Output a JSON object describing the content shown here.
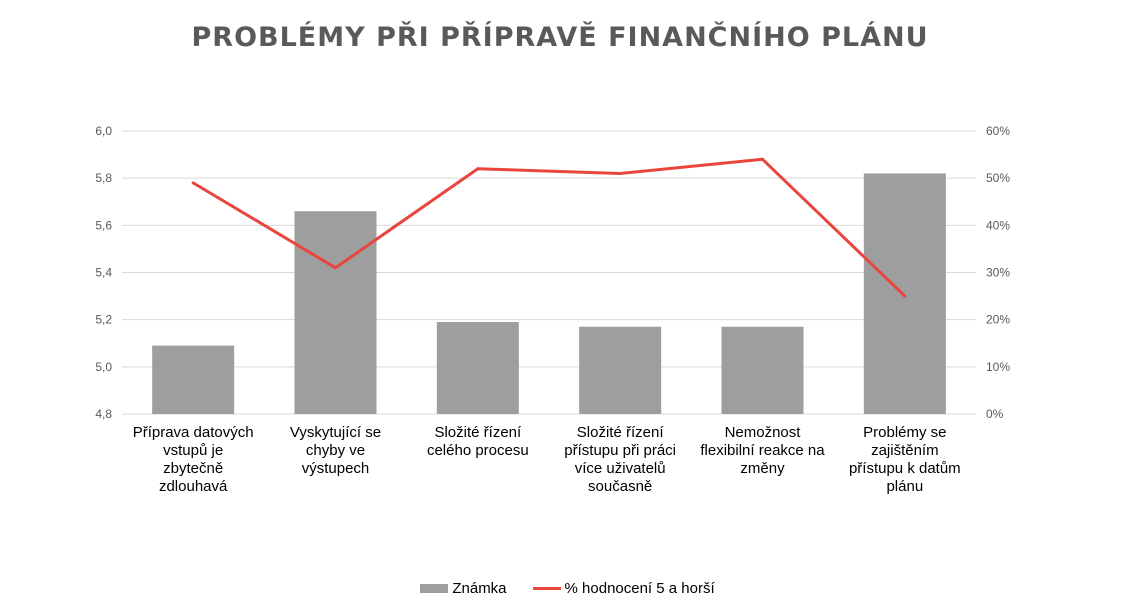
{
  "chart_data": {
    "type": "bar",
    "title": "PROBLÉMY PŘI PŘÍPRAVĚ FINANČNÍHO PLÁNU",
    "categories": [
      [
        "Příprava datových",
        "vstupů je",
        "zbytečně",
        "zdlouhavá"
      ],
      [
        "Vyskytující se",
        "chyby ve",
        "výstupech"
      ],
      [
        "Složité řízení",
        "celého procesu"
      ],
      [
        "Složité řízení",
        "přístupu při práci",
        "více uživatelů",
        "současně"
      ],
      [
        "Nemožnost",
        "flexibilní reakce na",
        "změny"
      ],
      [
        "Problémy se",
        "zajištěním",
        "přístupu k datům",
        "plánu"
      ]
    ],
    "series": [
      {
        "name": "Známka",
        "type": "bar",
        "axis": "left",
        "values": [
          5.09,
          5.66,
          5.19,
          5.17,
          5.17,
          5.82
        ],
        "color": "#9e9e9e"
      },
      {
        "name": "% hodnocení 5 a horší",
        "type": "line",
        "axis": "right",
        "values": [
          0.49,
          0.31,
          0.52,
          0.51,
          0.54,
          0.25
        ],
        "color": "#e8463c"
      }
    ],
    "ylim_left": [
      4.8,
      6.0
    ],
    "yticks_left": [
      "4,8",
      "5,0",
      "5,2",
      "5,4",
      "5,6",
      "5,8",
      "6,0"
    ],
    "ylim_right": [
      0,
      0.6
    ],
    "yticks_right": [
      "0%",
      "10%",
      "20%",
      "30%",
      "40%",
      "50%",
      "60%"
    ],
    "grid": true,
    "legend_position": "bottom"
  },
  "legend": {
    "bar_label": "Známka",
    "line_label": "% hodnocení 5 a horší"
  }
}
